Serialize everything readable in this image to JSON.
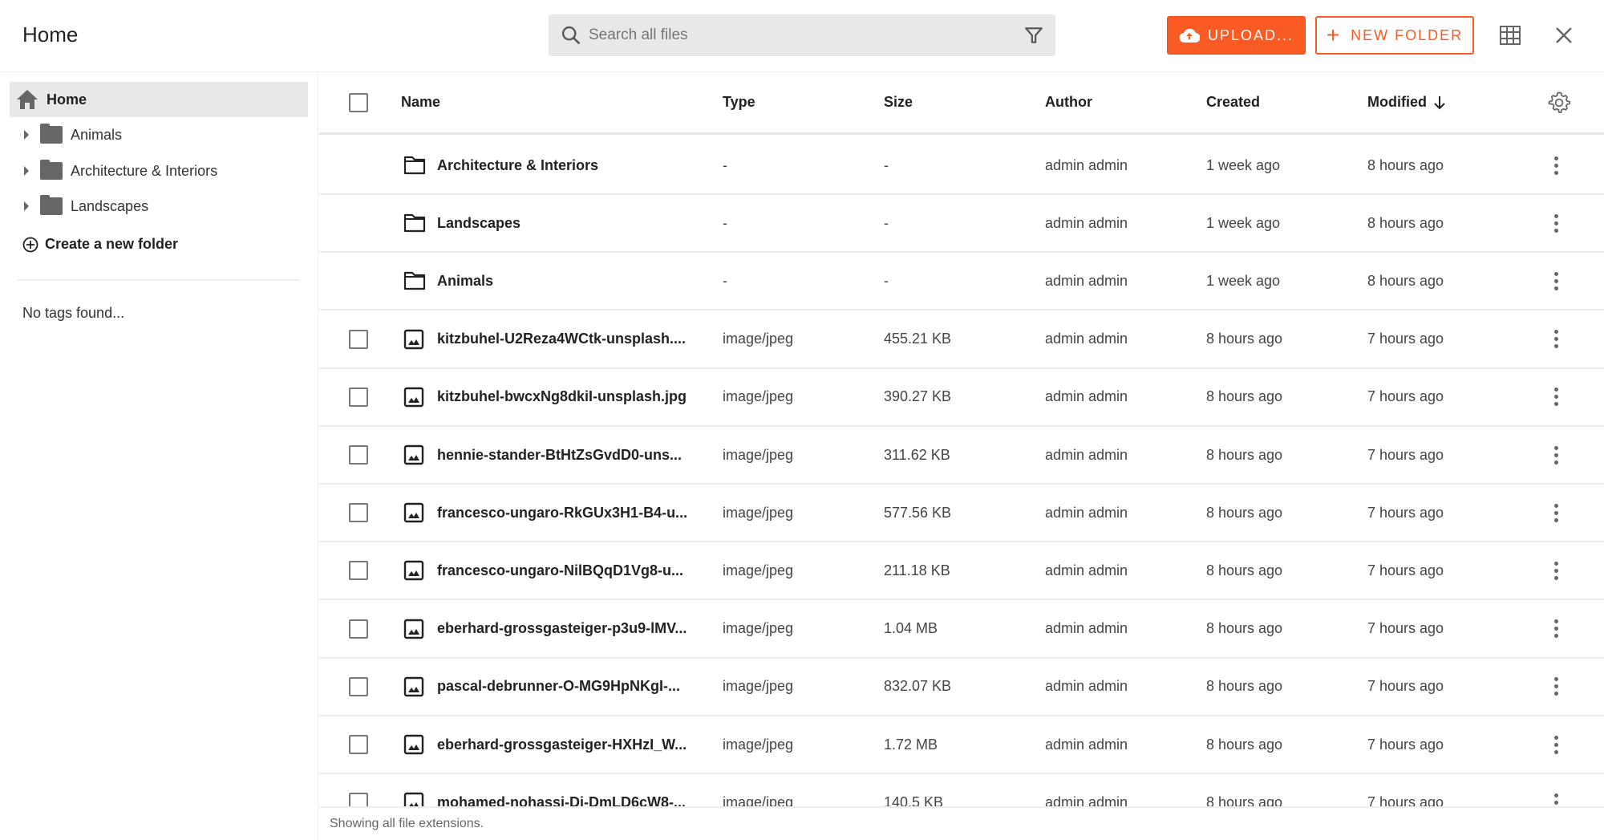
{
  "header": {
    "title": "Home",
    "search_placeholder": "Search all files",
    "upload_label": "UPLOAD...",
    "new_folder_label": "NEW FOLDER"
  },
  "colors": {
    "accent": "#fa5a23"
  },
  "sidebar": {
    "home_label": "Home",
    "folders": [
      {
        "label": "Animals"
      },
      {
        "label": "Architecture & Interiors"
      },
      {
        "label": "Landscapes"
      }
    ],
    "create_label": "Create a new folder",
    "no_tags": "No tags found..."
  },
  "table": {
    "columns": {
      "name": "Name",
      "type": "Type",
      "size": "Size",
      "author": "Author",
      "created": "Created",
      "modified": "Modified"
    },
    "sort": {
      "column": "modified",
      "direction": "descending"
    },
    "rows": [
      {
        "kind": "folder",
        "name": "Architecture & Interiors",
        "type": "-",
        "size": "-",
        "author": "admin admin",
        "created": "1 week ago",
        "modified": "8 hours ago"
      },
      {
        "kind": "folder",
        "name": "Landscapes",
        "type": "-",
        "size": "-",
        "author": "admin admin",
        "created": "1 week ago",
        "modified": "8 hours ago"
      },
      {
        "kind": "folder",
        "name": "Animals",
        "type": "-",
        "size": "-",
        "author": "admin admin",
        "created": "1 week ago",
        "modified": "8 hours ago"
      },
      {
        "kind": "file",
        "name": "kitzbuhel-U2Reza4WCtk-unsplash....",
        "type": "image/jpeg",
        "size": "455.21 KB",
        "author": "admin admin",
        "created": "8 hours ago",
        "modified": "7 hours ago"
      },
      {
        "kind": "file",
        "name": "kitzbuhel-bwcxNg8dkiI-unsplash.jpg",
        "type": "image/jpeg",
        "size": "390.27 KB",
        "author": "admin admin",
        "created": "8 hours ago",
        "modified": "7 hours ago"
      },
      {
        "kind": "file",
        "name": "hennie-stander-BtHtZsGvdD0-uns...",
        "type": "image/jpeg",
        "size": "311.62 KB",
        "author": "admin admin",
        "created": "8 hours ago",
        "modified": "7 hours ago"
      },
      {
        "kind": "file",
        "name": "francesco-ungaro-RkGUx3H1-B4-u...",
        "type": "image/jpeg",
        "size": "577.56 KB",
        "author": "admin admin",
        "created": "8 hours ago",
        "modified": "7 hours ago"
      },
      {
        "kind": "file",
        "name": "francesco-ungaro-NilBQqD1Vg8-u...",
        "type": "image/jpeg",
        "size": "211.18 KB",
        "author": "admin admin",
        "created": "8 hours ago",
        "modified": "7 hours ago"
      },
      {
        "kind": "file",
        "name": "eberhard-grossgasteiger-p3u9-lMV...",
        "type": "image/jpeg",
        "size": "1.04 MB",
        "author": "admin admin",
        "created": "8 hours ago",
        "modified": "7 hours ago"
      },
      {
        "kind": "file",
        "name": "pascal-debrunner-O-MG9HpNKgI-...",
        "type": "image/jpeg",
        "size": "832.07 KB",
        "author": "admin admin",
        "created": "8 hours ago",
        "modified": "7 hours ago"
      },
      {
        "kind": "file",
        "name": "eberhard-grossgasteiger-HXHzI_W...",
        "type": "image/jpeg",
        "size": "1.72 MB",
        "author": "admin admin",
        "created": "8 hours ago",
        "modified": "7 hours ago"
      },
      {
        "kind": "file",
        "name": "mohamed-nohassi-Di-DmLD6cW8-...",
        "type": "image/jpeg",
        "size": "140.5 KB",
        "author": "admin admin",
        "created": "8 hours ago",
        "modified": "7 hours ago"
      }
    ]
  },
  "footer": {
    "text": "Showing all file extensions."
  }
}
